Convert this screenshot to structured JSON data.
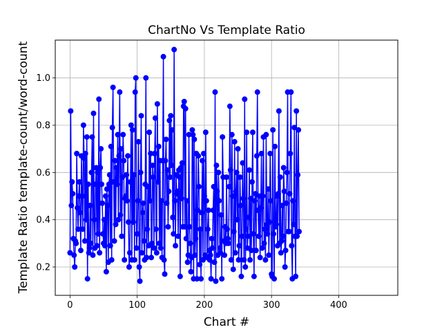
{
  "chart_data": {
    "type": "line",
    "title": "ChartNo Vs Template Ratio",
    "xlabel": "Chart #",
    "ylabel": "Template Ratio template-count/word-count",
    "xlim": [
      -22,
      488
    ],
    "ylim": [
      0.08,
      1.16
    ],
    "x_ticks": [
      0,
      100,
      200,
      300,
      400
    ],
    "y_ticks": [
      0.2,
      0.4,
      0.6,
      0.8,
      1.0
    ],
    "x_tick_labels": [
      "0",
      "100",
      "200",
      "300",
      "400"
    ],
    "y_tick_labels": [
      "0.2",
      "0.4",
      "0.6",
      "0.8",
      "1.0"
    ],
    "grid": true,
    "series": [
      {
        "color": "#0000ff",
        "marker": "circle",
        "x_start": 0,
        "x_step": 1,
        "values": [
          0.26,
          0.86,
          0.46,
          0.56,
          0.51,
          0.32,
          0.25,
          0.2,
          0.31,
          0.3,
          0.68,
          0.45,
          0.36,
          0.5,
          0.56,
          0.43,
          0.27,
          0.67,
          0.5,
          0.36,
          0.8,
          0.66,
          0.31,
          0.68,
          0.4,
          0.75,
          0.15,
          0.55,
          0.26,
          0.28,
          0.46,
          0.3,
          0.6,
          0.75,
          0.25,
          0.85,
          0.4,
          0.28,
          0.55,
          0.62,
          0.29,
          0.6,
          0.34,
          0.91,
          0.26,
          0.62,
          0.7,
          0.55,
          0.47,
          0.34,
          0.3,
          0.4,
          0.29,
          0.5,
          0.18,
          0.53,
          0.46,
          0.22,
          0.55,
          0.59,
          0.29,
          0.71,
          0.23,
          0.79,
          0.96,
          0.56,
          0.31,
          0.65,
          0.38,
          0.62,
          0.55,
          0.76,
          0.4,
          0.67,
          0.94,
          0.42,
          0.7,
          0.33,
          0.58,
          0.76,
          0.65,
          0.23,
          0.49,
          0.5,
          0.59,
          0.48,
          0.67,
          0.39,
          0.2,
          0.26,
          0.56,
          0.8,
          0.23,
          0.78,
          0.39,
          0.59,
          0.23,
          0.94,
          1.0,
          0.28,
          0.34,
          0.48,
          0.73,
          0.2,
          0.14,
          0.6,
          0.84,
          0.26,
          0.43,
          0.47,
          0.31,
          0.23,
          0.55,
          1.0,
          0.24,
          0.36,
          0.54,
          0.29,
          0.77,
          0.48,
          0.68,
          0.24,
          0.3,
          0.63,
          0.58,
          0.28,
          0.68,
          0.83,
          0.36,
          0.26,
          0.89,
          0.56,
          0.71,
          0.3,
          0.65,
          0.28,
          0.48,
          0.24,
          0.65,
          1.09,
          0.23,
          0.17,
          0.65,
          0.74,
          0.47,
          0.61,
          0.37,
          0.52,
          0.82,
          0.58,
          0.84,
          0.63,
          0.78,
          0.41,
          0.34,
          1.12,
          0.48,
          0.29,
          0.59,
          0.51,
          0.52,
          0.33,
          0.61,
          0.58,
          0.16,
          0.62,
          0.49,
          0.64,
          0.37,
          0.88,
          0.9,
          0.37,
          0.87,
          0.32,
          0.48,
          0.22,
          0.25,
          0.76,
          0.37,
          0.3,
          0.18,
          0.24,
          0.78,
          0.76,
          0.15,
          0.74,
          0.25,
          0.32,
          0.68,
          0.15,
          0.44,
          0.67,
          0.54,
          0.21,
          0.36,
          0.15,
          0.43,
          0.65,
          0.23,
          0.68,
          0.5,
          0.25,
          0.77,
          0.48,
          0.24,
          0.36,
          0.44,
          0.27,
          0.23,
          0.25,
          0.15,
          0.32,
          0.28,
          0.44,
          0.54,
          0.22,
          0.94,
          0.14,
          0.63,
          0.52,
          0.25,
          0.6,
          0.48,
          0.28,
          0.26,
          0.42,
          0.15,
          0.75,
          0.58,
          0.31,
          0.25,
          0.37,
          0.3,
          0.58,
          0.36,
          0.32,
          0.3,
          0.54,
          0.88,
          0.61,
          0.23,
          0.76,
          0.5,
          0.19,
          0.35,
          0.73,
          0.26,
          0.52,
          0.6,
          0.4,
          0.7,
          0.23,
          0.29,
          0.58,
          0.46,
          0.16,
          0.33,
          0.64,
          0.49,
          0.23,
          0.91,
          0.2,
          0.36,
          0.77,
          0.28,
          0.33,
          0.41,
          0.61,
          0.23,
          0.49,
          0.27,
          0.56,
          0.77,
          0.34,
          0.16,
          0.48,
          0.51,
          0.27,
          0.67,
          0.94,
          0.44,
          0.33,
          0.5,
          0.24,
          0.45,
          0.68,
          0.28,
          0.5,
          0.75,
          0.3,
          0.36,
          0.23,
          0.76,
          0.38,
          0.34,
          0.53,
          0.25,
          0.39,
          0.68,
          0.48,
          0.17,
          0.16,
          0.78,
          0.34,
          0.15,
          0.71,
          0.37,
          0.38,
          0.5,
          0.29,
          0.51,
          0.86,
          0.3,
          0.58,
          0.26,
          0.31,
          0.46,
          0.33,
          0.62,
          0.52,
          0.2,
          0.27,
          0.47,
          0.6,
          0.94,
          0.35,
          0.35,
          0.51,
          0.68,
          0.94,
          0.29,
          0.15,
          0.48,
          0.38,
          0.79,
          0.33,
          0.16,
          0.86,
          0.33,
          0.59,
          0.78,
          0.35
        ]
      }
    ]
  }
}
